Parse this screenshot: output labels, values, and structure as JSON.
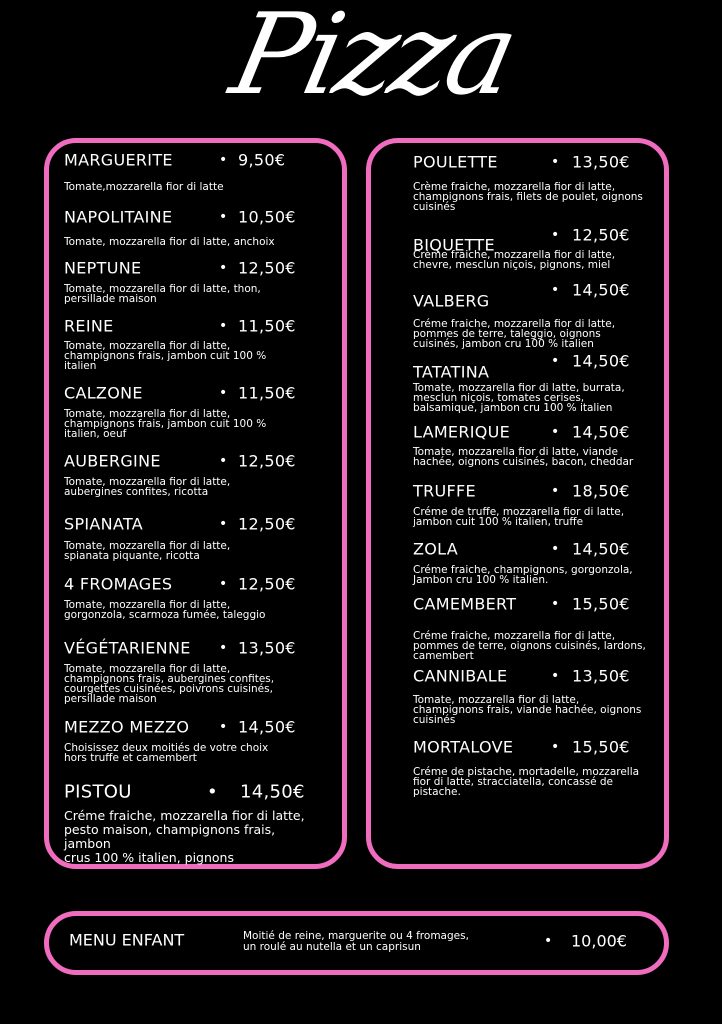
{
  "title": "Pizza",
  "colors": {
    "accent": "#f06cbf",
    "background": "#000000",
    "text": "#ffffff"
  },
  "left_column": [
    {
      "name": "MARGUERITE",
      "price": "9,50€",
      "desc": "Tomate,mozzarella fior di latte"
    },
    {
      "name": "NAPOLITAINE",
      "price": "10,50€",
      "desc": "Tomate, mozzarella fior di latte, anchoix"
    },
    {
      "name": "NEPTUNE",
      "price": "12,50€",
      "desc": "Tomate, mozzarella fior di latte, thon,\npersillade maison"
    },
    {
      "name": "REINE",
      "price": "11,50€",
      "desc": "Tomate, mozzarella fior di latte,\nchampignons frais, jambon cuit 100 %\nitalien"
    },
    {
      "name": "CALZONE",
      "price": "11,50€",
      "desc": "Tomate, mozzarella fior di latte,\nchampignons frais, jambon cuit 100 %\nitalien, oeuf"
    },
    {
      "name": "AUBERGINE",
      "price": "12,50€",
      "desc": "Tomate, mozzarella fior di latte,\naubergines confites, ricotta"
    },
    {
      "name": "SPIANATA",
      "price": "12,50€",
      "desc": "Tomate, mozzarella fior di latte,\nspianata piquante, ricotta"
    },
    {
      "name": "4 FROMAGES",
      "price": "12,50€",
      "desc": "Tomate, mozzarella fior di latte,\ngorgonzola, scarmoza fumée, taleggio"
    },
    {
      "name": "VÉGÉTARIENNE",
      "price": "13,50€",
      "desc": "Tomate, mozzarella fior di latte,\nchampignons frais, aubergines confites,\ncourgettes cuisinées, poivrons cuisinés,\npersillade maison"
    },
    {
      "name": "MEZZO MEZZO",
      "price": "14,50€",
      "desc": "Choisissez deux moitiés de votre choix\nhors truffe et camembert"
    },
    {
      "name": "PISTOU",
      "price": "14,50€",
      "desc": "Créme fraiche, mozzarella fior di latte,\npesto maison, champignons frais, jambon\ncrus 100 %  italien, pignons"
    }
  ],
  "right_column": [
    {
      "name": "POULETTE",
      "price": "13,50€",
      "desc": "Crème fraiche, mozzarella fior di latte,\nchampignons frais, filets de poulet, oignons\ncuisinés"
    },
    {
      "name": "BIQUETTE",
      "price": "12,50€",
      "desc": "Crème fraiche, mozzarella fior di latte,\nchevre, mesclun niçois, pignons, miel"
    },
    {
      "name": "VALBERG",
      "price": "14,50€",
      "desc": "Créme fraiche, mozzarella fior di latte,\npommes de terre, taleggio, oignons\ncuisinés, jambon cru 100 % italien"
    },
    {
      "name": "TATATINA",
      "price": "14,50€",
      "desc": "Tomate, mozzarella fior di latte, burrata,\nmesclun niçois, tomates cerises,\nbalsamique, jambon cru 100 %  italien"
    },
    {
      "name": "LAMERIQUE",
      "price": "14,50€",
      "desc": "Tomate, mozzarella fior di latte, viande\nhachée, oignons cuisinés, bacon, cheddar"
    },
    {
      "name": "TRUFFE",
      "price": "18,50€",
      "desc": "Créme de truffe, mozzarella fior di latte,\njambon cuit 100 %  italien, truffe"
    },
    {
      "name": "ZOLA",
      "price": "14,50€",
      "desc": "Créme fraiche, champignons, gorgonzola,\nJambon cru 100 %  italien."
    },
    {
      "name": "CAMEMBERT",
      "price": "15,50€",
      "desc": "Créme fraiche, mozzarella fior di latte,\npommes de terre, oignons cuisinés, lardons,\ncamembert"
    },
    {
      "name": "CANNIBALE",
      "price": "13,50€",
      "desc": "Tomate, mozzarella fior di latte,\nchampignons frais, viande hachée, oignons\ncuisinés"
    },
    {
      "name": "MORTALOVE",
      "price": "15,50€",
      "desc": "Créme de pistache, mortadelle, mozzarella\nfior di latte, stracciatella, concassé de\npistache."
    }
  ],
  "kids_menu": {
    "name": "MENU ENFANT",
    "desc": "Moitié de reine, marguerite ou 4 fromages,\nun roulé au nutella et un caprisun",
    "price": "10,00€"
  },
  "bullet": "•"
}
